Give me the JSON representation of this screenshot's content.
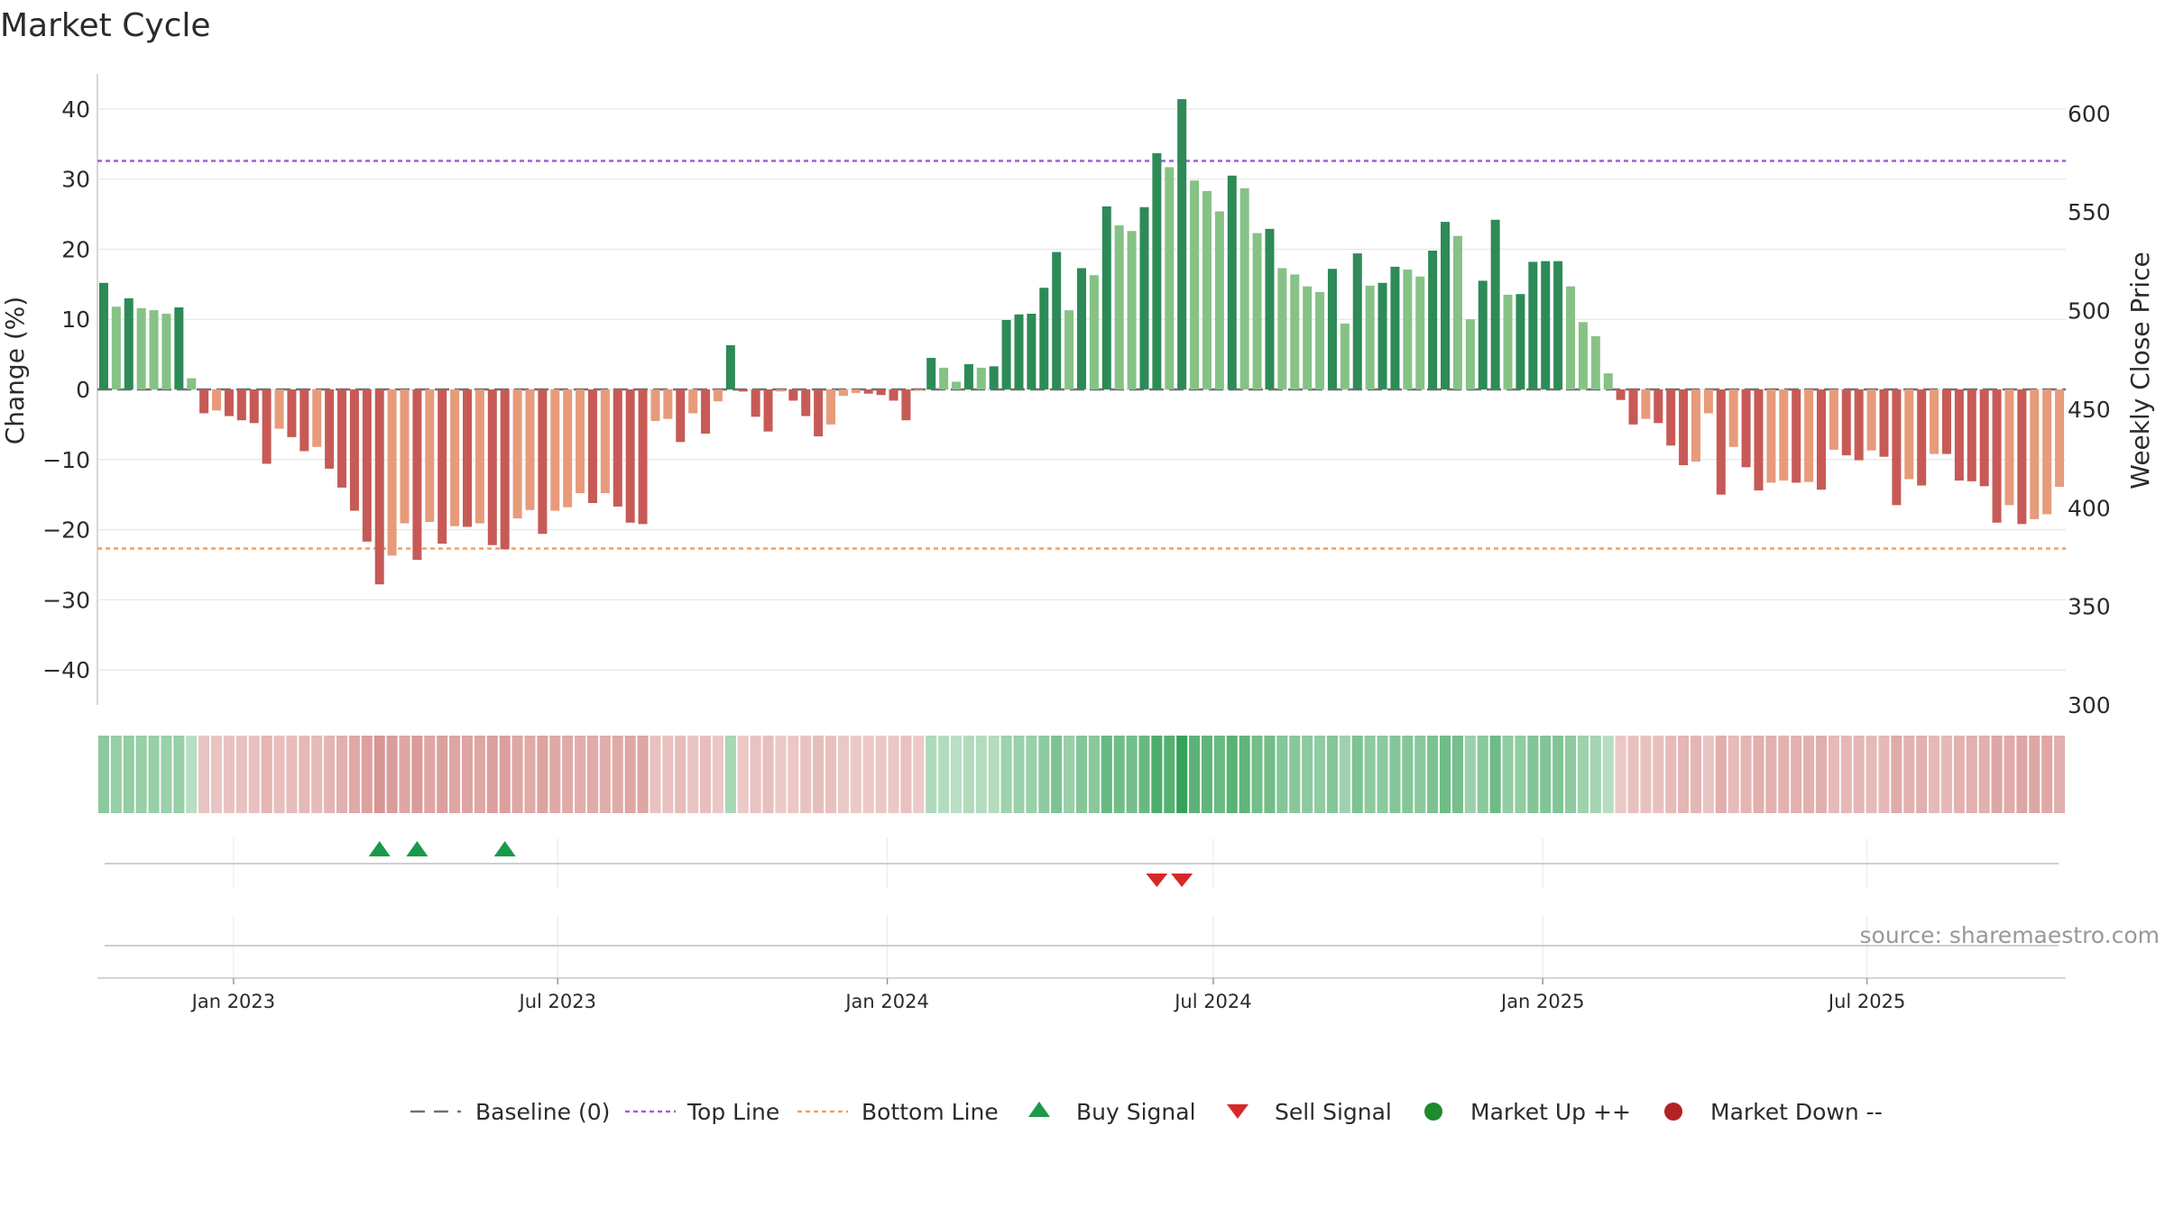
{
  "chart_data": {
    "type": "bar",
    "title": "Market Cycle",
    "ylabel_left": "Change (%)",
    "ylabel_right": "Weekly Close Price",
    "ylim_left": [
      -45,
      45
    ],
    "ylim_right": [
      300,
      620
    ],
    "yticks_left": [
      40,
      30,
      20,
      10,
      0,
      -10,
      -20,
      -30,
      -40
    ],
    "yticks_left_labels": [
      "40",
      "30",
      "20",
      "10",
      "0",
      "−10",
      "−20",
      "−30",
      "−40"
    ],
    "yticks_right": [
      600,
      550,
      500,
      450,
      400,
      350,
      300
    ],
    "yticks_right_labels": [
      "600",
      "550",
      "500",
      "450",
      "400",
      "350",
      "300"
    ],
    "x_start": "2022-10-17",
    "x_interval": "weekly",
    "x_ticks": [
      {
        "date": "2023-01-01",
        "label": "Jan 2023"
      },
      {
        "date": "2023-07-01",
        "label": "Jul 2023"
      },
      {
        "date": "2024-01-01",
        "label": "Jan 2024"
      },
      {
        "date": "2024-07-01",
        "label": "Jul 2024"
      },
      {
        "date": "2025-01-01",
        "label": "Jan 2025"
      },
      {
        "date": "2025-07-01",
        "label": "Jul 2025"
      }
    ],
    "top_line": 32.6,
    "bottom_line": -22.7,
    "baseline": 0,
    "grid": true,
    "values": [
      15.2,
      11.8,
      13.0,
      11.6,
      11.3,
      10.8,
      11.7,
      1.6,
      -3.4,
      -3.0,
      -3.8,
      -4.4,
      -4.8,
      -10.6,
      -5.6,
      -6.8,
      -8.8,
      -8.2,
      -11.3,
      -14.0,
      -17.3,
      -21.7,
      -27.8,
      -23.7,
      -19.1,
      -24.3,
      -18.9,
      -22.0,
      -19.5,
      -19.6,
      -19.1,
      -22.2,
      -22.8,
      -18.4,
      -17.2,
      -20.6,
      -17.3,
      -16.8,
      -14.8,
      -16.2,
      -14.8,
      -16.7,
      -19.0,
      -19.2,
      -4.5,
      -4.2,
      -7.5,
      -3.4,
      -6.3,
      -1.7,
      6.3,
      -0.3,
      -3.9,
      -6.0,
      -0.3,
      -1.6,
      -3.8,
      -6.7,
      -5.0,
      -0.9,
      -0.5,
      -0.6,
      -0.8,
      -1.6,
      -4.4,
      -0.2,
      4.5,
      3.1,
      1.1,
      3.6,
      3.1,
      3.3,
      9.9,
      10.7,
      10.8,
      14.5,
      19.6,
      11.3,
      17.3,
      16.3,
      26.1,
      23.4,
      22.6,
      26.0,
      33.7,
      31.7,
      41.4,
      29.8,
      28.3,
      25.4,
      30.5,
      28.7,
      22.3,
      22.9,
      17.3,
      16.4,
      14.7,
      13.9,
      17.2,
      9.4,
      19.4,
      14.8,
      15.2,
      17.5,
      17.1,
      16.1,
      19.8,
      23.9,
      21.9,
      10.0,
      15.5,
      24.2,
      13.5,
      13.6,
      18.2,
      18.3,
      18.3,
      14.7,
      9.6,
      7.6,
      2.3,
      -1.5,
      -5.0,
      -4.2,
      -4.8,
      -8.0,
      -10.8,
      -10.3,
      -3.4,
      -15.0,
      -8.2,
      -11.1,
      -14.4,
      -13.3,
      -13.0,
      -13.3,
      -13.2,
      -14.3,
      -8.6,
      -9.4,
      -10.1,
      -8.7,
      -9.6,
      -16.5,
      -12.8,
      -13.7,
      -9.2,
      -9.2,
      -13.0,
      -13.1,
      -13.8,
      -19.0,
      -16.5,
      -19.2,
      -18.5,
      -17.8,
      -13.9
    ],
    "bar_colors": {
      "up_strong": "#2e8a57",
      "up_weak": "#86c285",
      "down_strong": "#c75a56",
      "down_weak": "#e79b7b"
    },
    "buy_signal_indices": [
      22,
      25,
      32
    ],
    "sell_signal_indices": [
      84,
      86
    ],
    "source_note": "source: sharemaestro.com",
    "legend": [
      {
        "key": "baseline",
        "label": "Baseline (0)",
        "color": "#707070"
      },
      {
        "key": "top",
        "label": "Top Line",
        "color": "#a060d0"
      },
      {
        "key": "bottom",
        "label": "Bottom Line",
        "color": "#f0a060"
      },
      {
        "key": "buy",
        "label": "Buy Signal",
        "color": "#1a9a4a"
      },
      {
        "key": "sell",
        "label": "Sell Signal",
        "color": "#d62828"
      },
      {
        "key": "up",
        "label": "Market Up ++",
        "color": "#1e8a2e"
      },
      {
        "key": "down",
        "label": "Market Down --",
        "color": "#b22222"
      }
    ]
  }
}
